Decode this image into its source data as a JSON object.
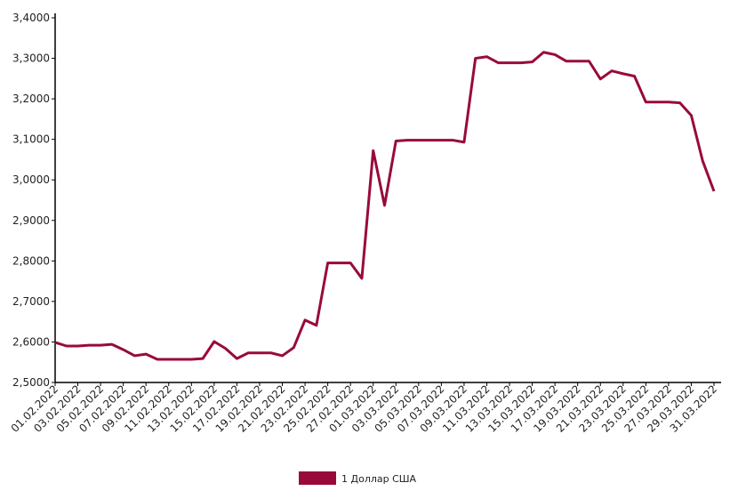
{
  "chart_data": {
    "type": "line",
    "categories": [
      "01.02.2022",
      null,
      "03.02.2022",
      null,
      "05.02.2022",
      null,
      "07.02.2022",
      null,
      "09.02.2022",
      null,
      "11.02.2022",
      null,
      "13.02.2022",
      null,
      "15.02.2022",
      null,
      "17.02.2022",
      null,
      "19.02.2022",
      null,
      "21.02.2022",
      null,
      "23.02.2022",
      null,
      "25.02.2022",
      null,
      "27.02.2022",
      null,
      "01.03.2022",
      null,
      "03.03.2022",
      null,
      "05.03.2022",
      null,
      "07.03.2022",
      null,
      "09.03.2022",
      null,
      "11.03.2022",
      null,
      "13.03.2022",
      null,
      "15.03.2022",
      null,
      "17.03.2022",
      null,
      "19.03.2022",
      null,
      "21.03.2022",
      null,
      "23.03.2022",
      null,
      "25.03.2022",
      null,
      "27.03.2022",
      null,
      "29.03.2022",
      null,
      "31.03.2022"
    ],
    "series": [
      {
        "name": "1 Доллар США",
        "color": "#990a3c",
        "values": [
          2.599,
          2.59,
          2.59,
          2.592,
          2.592,
          2.594,
          2.581,
          2.566,
          2.57,
          2.557,
          2.557,
          2.557,
          2.557,
          2.559,
          2.601,
          2.584,
          2.559,
          2.573,
          2.573,
          2.573,
          2.566,
          2.586,
          2.654,
          2.641,
          2.795,
          2.795,
          2.795,
          2.757,
          3.072,
          2.937,
          3.096,
          3.098,
          3.098,
          3.098,
          3.098,
          3.098,
          3.093,
          3.3,
          3.304,
          3.289,
          3.289,
          3.289,
          3.291,
          3.315,
          3.309,
          3.293,
          3.293,
          3.293,
          3.249,
          3.269,
          3.262,
          3.256,
          3.192,
          3.192,
          3.192,
          3.19,
          3.159,
          3.047,
          2.972
        ]
      }
    ],
    "ylim": [
      2.5,
      3.4
    ],
    "yticks": [
      {
        "value": 2.5,
        "label": "2,5000"
      },
      {
        "value": 2.6,
        "label": "2,6000"
      },
      {
        "value": 2.7,
        "label": "2,7000"
      },
      {
        "value": 2.8,
        "label": "2,8000"
      },
      {
        "value": 2.9,
        "label": "2,9000"
      },
      {
        "value": 3.0,
        "label": "3,0000"
      },
      {
        "value": 3.1,
        "label": "3,1000"
      },
      {
        "value": 3.2,
        "label": "3,2000"
      },
      {
        "value": 3.3,
        "label": "3,3000"
      },
      {
        "value": 3.4,
        "label": "3,4000"
      }
    ],
    "grid": false,
    "legend": "bottom"
  }
}
